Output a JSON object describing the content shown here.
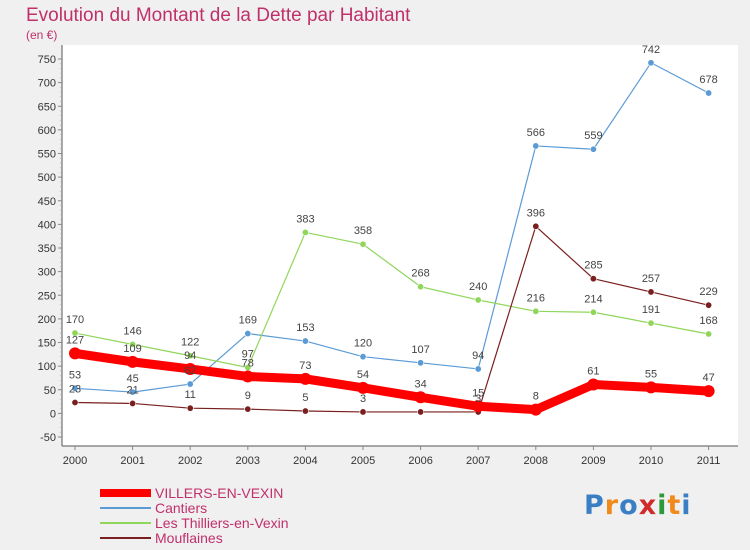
{
  "header": {
    "title": "Evolution du Montant de la Dette par Habitant",
    "subtitle": "(en €)"
  },
  "logo": {
    "text": "Proxiti",
    "colors": [
      "#3a7fc4",
      "#f08a1c",
      "#3a7fc4",
      "#d02a2a",
      "#2a9a3a",
      "#f08a1c",
      "#3a7fc4"
    ]
  },
  "chart_data": {
    "type": "line",
    "title": "Evolution du Montant de la Dette par Habitant",
    "ylabel": "(en €)",
    "x": [
      "2000",
      "2001",
      "2002",
      "2003",
      "2004",
      "2005",
      "2006",
      "2007",
      "2008",
      "2009",
      "2010",
      "2011"
    ],
    "ylim": [
      -50,
      750
    ],
    "yticks": [
      -50,
      0,
      50,
      100,
      150,
      200,
      250,
      300,
      350,
      400,
      450,
      500,
      550,
      600,
      650,
      700,
      750
    ],
    "grid": false,
    "legend_position": "bottom-left",
    "series": [
      {
        "name": "VILLERS-EN-VEXIN",
        "color": "#ff0000",
        "values": [
          127,
          109,
          94,
          78,
          73,
          54,
          34,
          15,
          8,
          61,
          55,
          47
        ],
        "labels": [
          "127",
          "109",
          "94",
          "78",
          "73",
          "54",
          "34",
          "15",
          "8",
          "61",
          "55",
          "47"
        ]
      },
      {
        "name": "Cantiers",
        "color": "#5b9bd5",
        "values": [
          53,
          45,
          62,
          169,
          153,
          120,
          107,
          94,
          566,
          559,
          742,
          678
        ],
        "labels": [
          "53",
          "45",
          "62",
          "169",
          "153",
          "120",
          "107",
          "94",
          "566",
          "559",
          "742",
          "678"
        ]
      },
      {
        "name": "Les Thilliers-en-Vexin",
        "color": "#8fd65a",
        "values": [
          170,
          146,
          122,
          97,
          383,
          358,
          268,
          240,
          216,
          214,
          191,
          168
        ],
        "labels": [
          "170",
          "146",
          "122",
          "97",
          "383",
          "358",
          "268",
          "240",
          "216",
          "214",
          "191",
          "168"
        ]
      },
      {
        "name": "Mouflaines",
        "color": "#7a1f1f",
        "values": [
          23,
          21,
          11,
          9,
          5,
          3,
          3,
          3,
          396,
          285,
          257,
          229
        ],
        "labels": [
          "23",
          "21",
          "11",
          "9",
          "5",
          "3",
          "",
          "3",
          "396",
          "285",
          "257",
          "229"
        ]
      }
    ]
  }
}
